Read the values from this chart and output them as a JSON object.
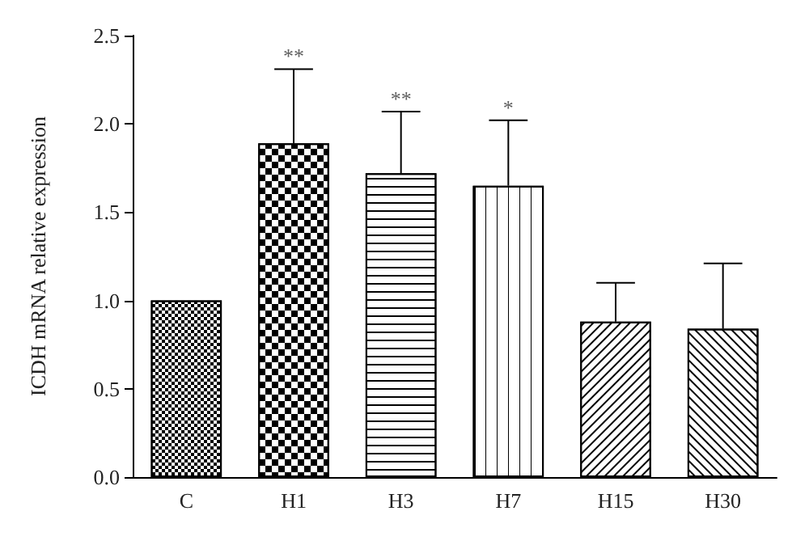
{
  "chart_data": {
    "type": "bar",
    "ylabel": "ICDH mRNA relative expression",
    "categories": [
      "C",
      "H1",
      "H3",
      "H7",
      "H15",
      "H30"
    ],
    "values": [
      1.0,
      1.89,
      1.72,
      1.65,
      0.88,
      0.84
    ],
    "errors": [
      null,
      [
        1.89,
        2.31
      ],
      [
        1.72,
        2.07
      ],
      [
        1.65,
        2.02
      ],
      [
        0.88,
        1.1
      ],
      [
        0.84,
        1.21
      ]
    ],
    "colors": [
      "#ffffff",
      "#ffffff",
      "#ffffff",
      "#ffffff",
      "#ffffff",
      "#ffffff"
    ],
    "ylim": [
      0,
      2.5
    ],
    "yticks": [
      {
        "value": 0,
        "label": "0.0"
      },
      0.5,
      {
        "value": 1,
        "label": "1.0"
      },
      1.5,
      {
        "value": 2,
        "label": "2.0"
      },
      2.5
    ],
    "grid": false,
    "annotations": [
      {
        "text": "**",
        "x": "H1",
        "y": 2.31
      },
      {
        "text": "**",
        "x": "H3",
        "y": 2.07
      },
      {
        "text": "*",
        "x": "H7",
        "y": 2.02
      }
    ]
  }
}
